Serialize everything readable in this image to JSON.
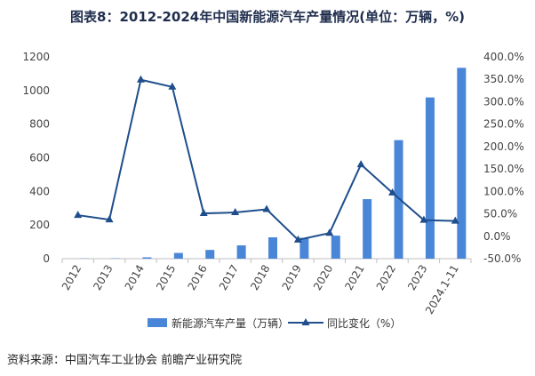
{
  "title": "图表8：2012-2024年中国新能源汽车产量情况(单位：万辆，%)",
  "source": "资料来源：中国汽车工业协会 前瞻产业研究院",
  "colors": {
    "bar": "#4a86d8",
    "line": "#1f4e8c",
    "axis": "#bfbfbf"
  },
  "chart_data": {
    "type": "bar",
    "categories": [
      "2012",
      "2013",
      "2014",
      "2015",
      "2016",
      "2017",
      "2018",
      "2019",
      "2020",
      "2021",
      "2022",
      "2023",
      "2024.1-11"
    ],
    "series": [
      {
        "name": "新能源汽车产量（万辆）",
        "type": "bar",
        "axis": "left",
        "values": [
          1.3,
          1.8,
          8,
          34,
          52,
          79,
          127,
          124,
          137,
          354,
          705,
          959,
          1135
        ]
      },
      {
        "name": "同比变化（%）",
        "type": "line",
        "axis": "right",
        "values": [
          47,
          37,
          349,
          333,
          51,
          53,
          60,
          -8,
          7,
          160,
          97,
          36,
          34
        ]
      }
    ],
    "left_axis": {
      "ylim": [
        0,
        1200
      ],
      "ticks": [
        "0",
        "200",
        "400",
        "600",
        "800",
        "1000",
        "1200"
      ]
    },
    "right_axis": {
      "ylim": [
        -50,
        400
      ],
      "ticks": [
        "-50.0%",
        "0.0%",
        "50.0%",
        "100.0%",
        "150.0%",
        "200.0%",
        "250.0%",
        "300.0%",
        "350.0%",
        "400.0%"
      ]
    },
    "legend_position": "bottom"
  }
}
